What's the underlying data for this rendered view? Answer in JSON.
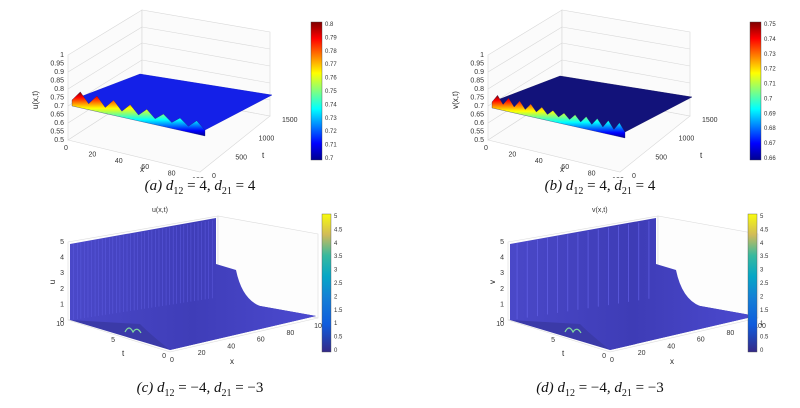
{
  "panels": [
    {
      "caption": {
        "tag": "(a)",
        "d12": "4",
        "d21": "4"
      },
      "chart_data": {
        "type": "surface",
        "zlabel": "u(x,t)",
        "xlabel": "x",
        "ylabel": "t",
        "title": "",
        "x_ticks": [
          "0",
          "20",
          "40",
          "60",
          "80",
          "100"
        ],
        "t_ticks": [
          "0",
          "500",
          "1000",
          "1500"
        ],
        "z_ticks": [
          "0.5",
          "0.55",
          "0.6",
          "0.65",
          "0.7",
          "0.75",
          "0.8",
          "0.85",
          "0.9",
          "0.95",
          "1"
        ],
        "xlim": [
          0,
          100
        ],
        "tlim": [
          0,
          1500
        ],
        "zlim": [
          0.5,
          1
        ],
        "colorbar": {
          "range": [
            0.7,
            0.8
          ],
          "ticks": [
            "0.8",
            "0.79",
            "0.78",
            "0.77",
            "0.76",
            "0.75",
            "0.74",
            "0.73",
            "0.72",
            "0.71",
            "0.7"
          ],
          "colormap": "jet"
        },
        "surface": {
          "base_value": 0.71,
          "oscillation_min": 0.7,
          "oscillation_max": 0.8,
          "oscillation_region_t": [
            0,
            60
          ],
          "spikes_along_x": 8
        }
      }
    },
    {
      "caption": {
        "tag": "(b)",
        "d12": "4",
        "d21": "4"
      },
      "chart_data": {
        "type": "surface",
        "zlabel": "v(x,t)",
        "xlabel": "x",
        "ylabel": "t",
        "title": "",
        "x_ticks": [
          "0",
          "20",
          "40",
          "60",
          "80",
          "100"
        ],
        "t_ticks": [
          "0",
          "500",
          "1000",
          "1500"
        ],
        "z_ticks": [
          "0.5",
          "0.55",
          "0.6",
          "0.65",
          "0.7",
          "0.75",
          "0.8",
          "0.85",
          "0.9",
          "0.95",
          "1"
        ],
        "xlim": [
          0,
          100
        ],
        "tlim": [
          0,
          1500
        ],
        "zlim": [
          0.5,
          1
        ],
        "colorbar": {
          "range": [
            0.66,
            0.75
          ],
          "ticks": [
            "0.75",
            "0.74",
            "0.73",
            "0.72",
            "0.71",
            "0.7",
            "0.69",
            "0.68",
            "0.67",
            "0.66"
          ],
          "colormap": "jet"
        },
        "surface": {
          "base_value": 0.66,
          "oscillation_min": 0.66,
          "oscillation_max": 0.75,
          "oscillation_region_t": [
            0,
            60
          ],
          "spikes_along_x": 12
        }
      }
    },
    {
      "caption": {
        "tag": "(c)",
        "d12": "−4",
        "d21": "−3"
      },
      "chart_data": {
        "type": "surface",
        "title": "u(x,t)",
        "zlabel": "u",
        "xlabel": "x",
        "ylabel": "t",
        "x_ticks": [
          "0",
          "20",
          "40",
          "60",
          "80",
          "100"
        ],
        "t_ticks": [
          "0",
          "5",
          "10"
        ],
        "z_ticks": [
          "0",
          "1",
          "2",
          "3",
          "4",
          "5"
        ],
        "xlim": [
          0,
          100
        ],
        "tlim": [
          0,
          10
        ],
        "zlim": [
          0,
          5
        ],
        "colorbar": {
          "range": [
            0,
            5
          ],
          "ticks": [
            "5",
            "4.5",
            "4",
            "3.5",
            "3",
            "2.5",
            "2",
            "1.5",
            "1",
            "0.5",
            "0"
          ],
          "colormap": "parula"
        },
        "surface": {
          "plateau_value": 5,
          "decay_x_start": 60,
          "decay_x_end": 70,
          "ridges_along_t": 40
        }
      }
    },
    {
      "caption": {
        "tag": "(d)",
        "d12": "−4",
        "d21": "−3"
      },
      "chart_data": {
        "type": "surface",
        "title": "v(x,t)",
        "zlabel": "v",
        "xlabel": "x",
        "ylabel": "t",
        "x_ticks": [
          "0",
          "20",
          "40",
          "60",
          "80",
          "100"
        ],
        "t_ticks": [
          "0",
          "5",
          "10"
        ],
        "z_ticks": [
          "0",
          "1",
          "2",
          "3",
          "4",
          "5"
        ],
        "xlim": [
          0,
          100
        ],
        "tlim": [
          0,
          10
        ],
        "zlim": [
          0,
          5
        ],
        "colorbar": {
          "range": [
            0,
            5
          ],
          "ticks": [
            "5",
            "4.5",
            "4",
            "3.5",
            "3",
            "2.5",
            "2",
            "1.5",
            "1",
            "0.5",
            "0"
          ],
          "colormap": "parula"
        },
        "surface": {
          "plateau_value": 5,
          "decay_x_start": 60,
          "decay_x_end": 70,
          "ridges_along_t": 14
        }
      }
    }
  ]
}
